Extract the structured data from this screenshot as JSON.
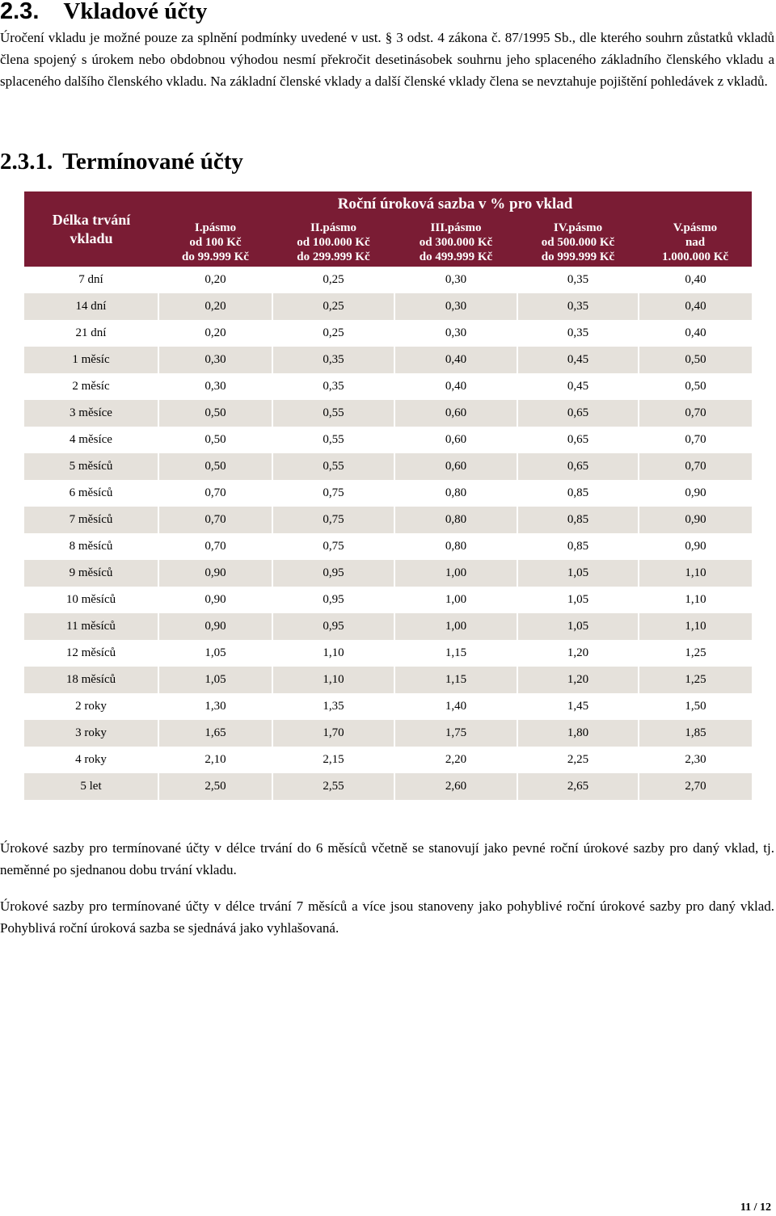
{
  "heading": {
    "number": "2.3.",
    "title": "Vkladové účty"
  },
  "intro": "Úročení vkladu je možné pouze za splnění podmínky uvedené v ust. § 3 odst. 4 zákona č. 87/1995 Sb., dle kterého souhrn zůstatků vkladů člena spojený s úrokem nebo obdobnou výhodou nesmí překročit desetinásobek souhrnu jeho splaceného základního členského vkladu a splaceného dalšího členského vkladu. Na základní členské vklady a další členské vklady člena se nevztahuje pojištění pohledávek z vkladů.",
  "subheading": {
    "number": "2.3.1.",
    "title": "Termínované účty"
  },
  "table": {
    "first_header": [
      "Délka trvání",
      "vkladu"
    ],
    "group_header": "Roční úroková sazba v % pro vklad",
    "columns": [
      [
        "I.pásmo",
        "od 100 Kč",
        "do 99.999 Kč"
      ],
      [
        "II.pásmo",
        "od 100.000 Kč",
        "do 299.999 Kč"
      ],
      [
        "III.pásmo",
        "od 300.000 Kč",
        "do 499.999 Kč"
      ],
      [
        "IV.pásmo",
        "od 500.000 Kč",
        "do 999.999 Kč"
      ],
      [
        "V.pásmo",
        "nad",
        "1.000.000 Kč"
      ]
    ],
    "rows": [
      [
        "7 dní",
        "0,20",
        "0,25",
        "0,30",
        "0,35",
        "0,40"
      ],
      [
        "14 dní",
        "0,20",
        "0,25",
        "0,30",
        "0,35",
        "0,40"
      ],
      [
        "21 dní",
        "0,20",
        "0,25",
        "0,30",
        "0,35",
        "0,40"
      ],
      [
        "1 měsíc",
        "0,30",
        "0,35",
        "0,40",
        "0,45",
        "0,50"
      ],
      [
        "2 měsíc",
        "0,30",
        "0,35",
        "0,40",
        "0,45",
        "0,50"
      ],
      [
        "3 měsíce",
        "0,50",
        "0,55",
        "0,60",
        "0,65",
        "0,70"
      ],
      [
        "4 měsíce",
        "0,50",
        "0,55",
        "0,60",
        "0,65",
        "0,70"
      ],
      [
        "5 měsíců",
        "0,50",
        "0,55",
        "0,60",
        "0,65",
        "0,70"
      ],
      [
        "6 měsíců",
        "0,70",
        "0,75",
        "0,80",
        "0,85",
        "0,90"
      ],
      [
        "7 měsíců",
        "0,70",
        "0,75",
        "0,80",
        "0,85",
        "0,90"
      ],
      [
        "8 měsíců",
        "0,70",
        "0,75",
        "0,80",
        "0,85",
        "0,90"
      ],
      [
        "9 měsíců",
        "0,90",
        "0,95",
        "1,00",
        "1,05",
        "1,10"
      ],
      [
        "10 měsíců",
        "0,90",
        "0,95",
        "1,00",
        "1,05",
        "1,10"
      ],
      [
        "11 měsíců",
        "0,90",
        "0,95",
        "1,00",
        "1,05",
        "1,10"
      ],
      [
        "12 měsíců",
        "1,05",
        "1,10",
        "1,15",
        "1,20",
        "1,25"
      ],
      [
        "18 měsíců",
        "1,05",
        "1,10",
        "1,15",
        "1,20",
        "1,25"
      ],
      [
        "2 roky",
        "1,30",
        "1,35",
        "1,40",
        "1,45",
        "1,50"
      ],
      [
        "3 roky",
        "1,65",
        "1,70",
        "1,75",
        "1,80",
        "1,85"
      ],
      [
        "4 roky",
        "2,10",
        "2,15",
        "2,20",
        "2,25",
        "2,30"
      ],
      [
        "5 let",
        "2,50",
        "2,55",
        "2,60",
        "2,65",
        "2,70"
      ]
    ]
  },
  "notes": [
    "Úrokové sazby pro termínované účty v délce trvání do 6 měsíců včetně se stanovují jako pevné roční úrokové sazby pro daný vklad, tj. neměnné po sjednanou dobu trvání vkladu.",
    "Úrokové sazby pro termínované účty v délce trvání 7 měsíců a více jsou stanoveny jako pohyblivé roční úrokové sazby pro daný vklad. Pohyblivá roční úroková sazba se sjednává jako vyhlašovaná."
  ],
  "footer": "11 / 12"
}
